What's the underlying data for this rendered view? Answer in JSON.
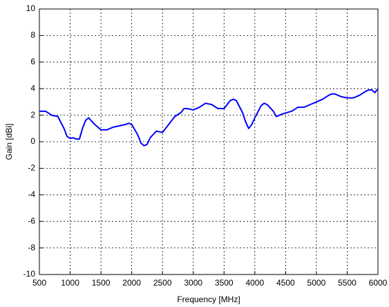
{
  "chart_data": {
    "type": "line",
    "xlabel": "Frequency [MHz]",
    "ylabel": "Gain [dBi]",
    "x": [
      500,
      600,
      700,
      800,
      900,
      950,
      1000,
      1050,
      1100,
      1150,
      1200,
      1250,
      1300,
      1400,
      1500,
      1600,
      1700,
      1800,
      1900,
      1950,
      2000,
      2100,
      2150,
      2200,
      2250,
      2300,
      2400,
      2500,
      2600,
      2700,
      2800,
      2850,
      2900,
      3000,
      3100,
      3200,
      3300,
      3400,
      3500,
      3600,
      3650,
      3700,
      3800,
      3850,
      3900,
      3950,
      4000,
      4100,
      4150,
      4200,
      4300,
      4350,
      4450,
      4600,
      4700,
      4800,
      4900,
      5000,
      5100,
      5200,
      5250,
      5300,
      5400,
      5500,
      5600,
      5700,
      5800,
      5850,
      5900,
      5950,
      6000
    ],
    "series": [
      {
        "color": "#0000ff",
        "values": [
          2.3,
          2.3,
          2.0,
          1.9,
          1.0,
          0.4,
          0.25,
          0.3,
          0.2,
          0.2,
          1.0,
          1.6,
          1.8,
          1.3,
          0.9,
          0.9,
          1.1,
          1.2,
          1.3,
          1.4,
          1.3,
          0.5,
          -0.1,
          -0.3,
          -0.2,
          0.3,
          0.8,
          0.7,
          1.3,
          1.9,
          2.2,
          2.5,
          2.5,
          2.4,
          2.6,
          2.9,
          2.8,
          2.5,
          2.5,
          3.1,
          3.2,
          3.1,
          2.2,
          1.5,
          1.0,
          1.3,
          1.8,
          2.7,
          2.9,
          2.8,
          2.3,
          1.9,
          2.1,
          2.3,
          2.6,
          2.6,
          2.8,
          3.0,
          3.2,
          3.5,
          3.6,
          3.6,
          3.4,
          3.3,
          3.3,
          3.5,
          3.8,
          3.9,
          3.9,
          3.7,
          4.0
        ]
      }
    ],
    "xlim": [
      500,
      6000
    ],
    "xticks": [
      500,
      1000,
      1500,
      2000,
      2500,
      3000,
      3500,
      4000,
      4500,
      5000,
      5500,
      6000
    ],
    "ylim": [
      -10,
      10
    ],
    "yticks": [
      -10,
      -8,
      -6,
      -4,
      -2,
      0,
      2,
      4,
      6,
      8,
      10
    ],
    "grid": true
  }
}
